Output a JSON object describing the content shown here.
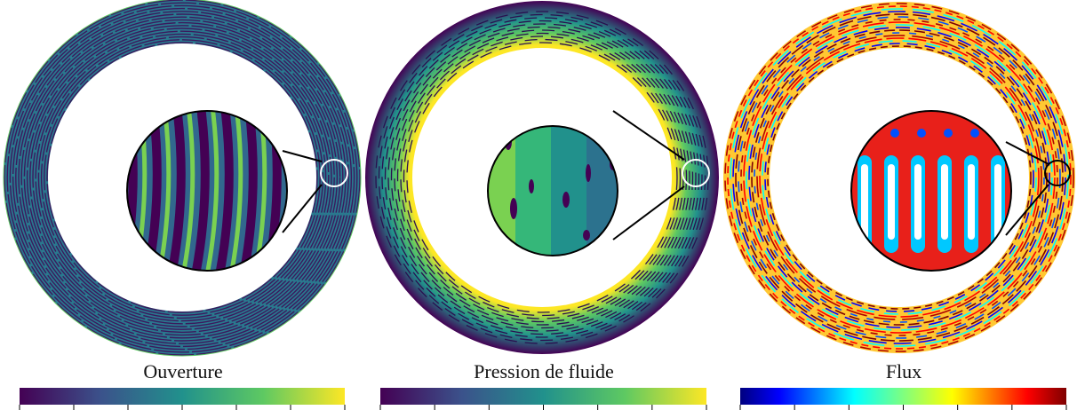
{
  "panels": [
    {
      "label": "Ouverture"
    },
    {
      "label": "Pression de fluide"
    },
    {
      "label": "Flux"
    }
  ]
}
